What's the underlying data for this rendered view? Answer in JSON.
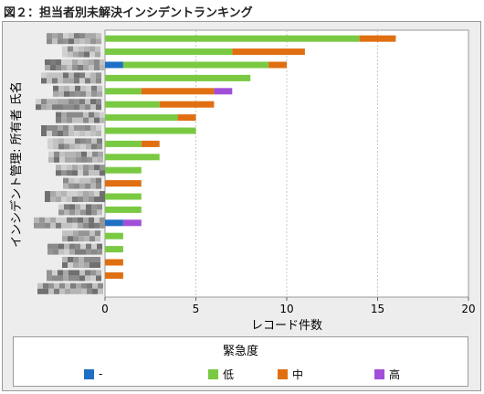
{
  "figure_title": "図２：担当者別未解決インシデントランキング",
  "colors": {
    "none": "#1f6fc4",
    "low": "#7ac943",
    "medium": "#e06f12",
    "high": "#a14fd8",
    "grid": "#c8c8c8",
    "plot_bg": "#ffffff",
    "frame_bg": "#ededed"
  },
  "chart_data": {
    "type": "bar",
    "orientation": "horizontal",
    "stacked": true,
    "xlabel": "レコード件数",
    "ylabel": "インシデント管理: 所有者 氏名",
    "xlim": [
      0,
      20
    ],
    "xticks": [
      0,
      5,
      10,
      15,
      20
    ],
    "grid": true,
    "categories_obscured": true,
    "series": [
      {
        "name": "-",
        "color": "#1f6fc4",
        "values": [
          0,
          0,
          1,
          0,
          0,
          0,
          0,
          0,
          0,
          0,
          0,
          0,
          0,
          0,
          1,
          0,
          0,
          0,
          0,
          0
        ]
      },
      {
        "name": "低",
        "color": "#7ac943",
        "values": [
          14,
          7,
          8,
          8,
          2,
          3,
          4,
          5,
          2,
          3,
          2,
          0,
          2,
          2,
          0,
          1,
          1,
          0,
          0,
          0
        ]
      },
      {
        "name": "中",
        "color": "#e06f12",
        "values": [
          2,
          4,
          1,
          0,
          4,
          3,
          1,
          0,
          1,
          0,
          0,
          2,
          0,
          0,
          0,
          0,
          0,
          1,
          1,
          0
        ]
      },
      {
        "name": "高",
        "color": "#a14fd8",
        "values": [
          0,
          0,
          0,
          0,
          1,
          0,
          0,
          0,
          0,
          0,
          0,
          0,
          0,
          0,
          1,
          0,
          0,
          0,
          0,
          0
        ]
      }
    ],
    "legend": {
      "title": "緊急度",
      "position": "bottom"
    }
  }
}
